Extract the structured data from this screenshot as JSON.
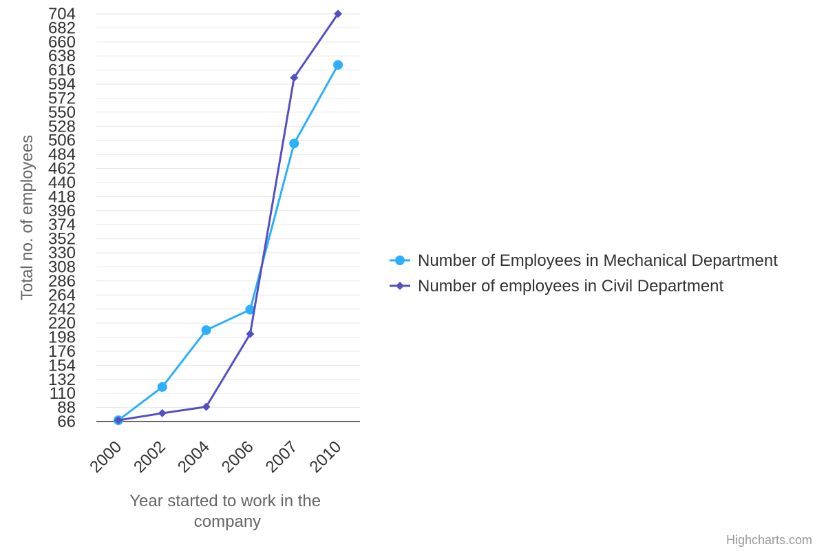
{
  "chart_data": {
    "type": "line",
    "categories": [
      "2000",
      "2002",
      "2004",
      "2006",
      "2007",
      "2010"
    ],
    "series": [
      {
        "name": "Number of Employees in Mechanical Department",
        "values": [
          68,
          120,
          209,
          241,
          501,
          624
        ],
        "color": "#2caffe",
        "marker": "circle"
      },
      {
        "name": "Number of employees in Civil Department",
        "values": [
          68,
          79,
          89,
          203,
          604,
          704
        ],
        "color": "#544fc5",
        "marker": "diamond"
      }
    ],
    "xlabel": "Year started to work in the company",
    "ylabel": "Total no. of employees",
    "ylim": [
      66,
      704
    ],
    "yticks": [
      66,
      88,
      110,
      132,
      154,
      176,
      198,
      220,
      242,
      264,
      286,
      308,
      330,
      352,
      374,
      396,
      418,
      440,
      462,
      484,
      506,
      528,
      550,
      572,
      594,
      616,
      638,
      660,
      682,
      704
    ],
    "grid": true,
    "legend": "right",
    "credits": "Highcharts.com"
  }
}
